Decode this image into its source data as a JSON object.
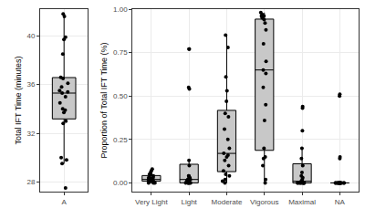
{
  "chart_data": [
    {
      "type": "box",
      "y_label": "Total IFT Time (minutes)",
      "categories": [
        "A"
      ],
      "values": [
        [
          41.8,
          41.6,
          39.9,
          39.7,
          38.5,
          36.6,
          36.5,
          36.1,
          35.8,
          35.5,
          35.4,
          35.3,
          35.0,
          34.5,
          34.0,
          33.9,
          33.7,
          33.0,
          32.8,
          30.0,
          29.8,
          29.5,
          27.5
        ]
      ],
      "color": "#c8c8c8",
      "ylim": [
        27.2,
        42.2
      ],
      "yticks": [
        28,
        32,
        36,
        40
      ],
      "grid": true
    },
    {
      "type": "box",
      "y_label": "Proportion of Total IFT Time (%)",
      "categories": [
        "Very Light",
        "Light",
        "Moderate",
        "Vigorous",
        "Maximal",
        "NA"
      ],
      "values": [
        [
          0.0,
          0.01,
          0.01,
          0.01,
          0.02,
          0.02,
          0.02,
          0.03,
          0.03,
          0.03,
          0.04,
          0.05,
          0.06,
          0.07,
          0.08,
          0.0,
          0.01,
          0.02,
          0.0,
          0.01,
          0.05
        ],
        [
          0.0,
          0.0,
          0.0,
          0.0,
          0.0,
          0.01,
          0.01,
          0.01,
          0.02,
          0.02,
          0.03,
          0.03,
          0.04,
          0.04,
          0.1,
          0.13,
          0.54,
          0.55,
          0.77,
          0.77,
          0.0
        ],
        [
          0.0,
          0.01,
          0.02,
          0.04,
          0.05,
          0.07,
          0.1,
          0.13,
          0.15,
          0.16,
          0.17,
          0.2,
          0.25,
          0.31,
          0.38,
          0.4,
          0.47,
          0.53,
          0.61,
          0.78,
          0.85
        ],
        [
          0.0,
          0.02,
          0.1,
          0.14,
          0.15,
          0.2,
          0.36,
          0.45,
          0.55,
          0.63,
          0.65,
          0.7,
          0.8,
          0.88,
          0.92,
          0.94,
          0.95,
          0.96,
          0.96,
          0.97,
          0.98
        ],
        [
          0.0,
          0.0,
          0.0,
          0.0,
          0.0,
          0.0,
          0.0,
          0.0,
          0.0,
          0.0,
          0.01,
          0.02,
          0.03,
          0.04,
          0.06,
          0.1,
          0.14,
          0.2,
          0.3,
          0.43,
          0.44
        ],
        [
          0.0,
          0.0,
          0.0,
          0.0,
          0.0,
          0.0,
          0.0,
          0.0,
          0.0,
          0.0,
          0.0,
          0.0,
          0.0,
          0.0,
          0.0,
          0.0,
          0.0,
          0.14,
          0.15,
          0.5,
          0.51
        ]
      ],
      "color": "#c8c8c8",
      "ylim": [
        -0.05,
        1.0
      ],
      "yticks": [
        {
          "value": 0,
          "label": "0.00"
        },
        {
          "value": 0.25,
          "label": "0.25"
        },
        {
          "value": 0.5,
          "label": "0.50"
        },
        {
          "value": 0.75,
          "label": "0.75"
        },
        {
          "value": 1,
          "label": "1.00"
        }
      ],
      "grid": true
    }
  ]
}
